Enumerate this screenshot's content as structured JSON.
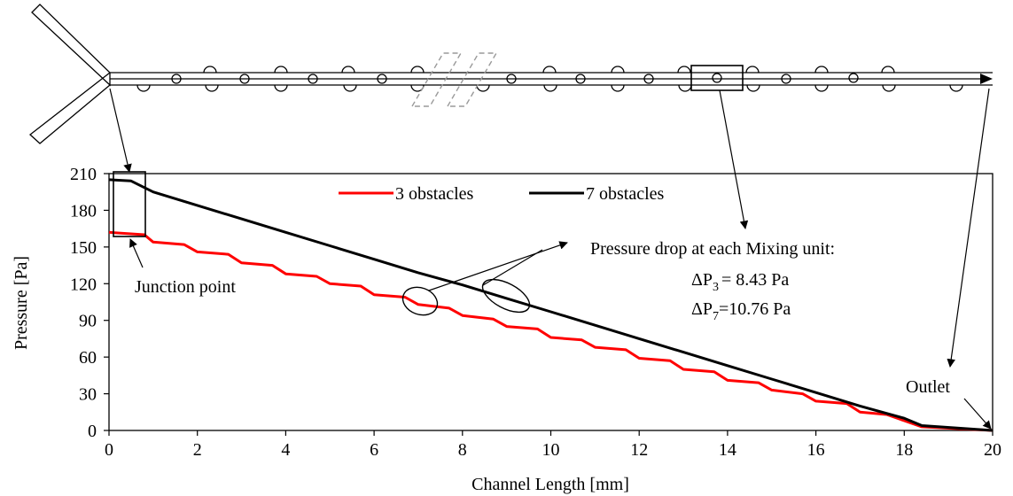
{
  "chart_data": {
    "type": "line",
    "xlabel": "Channel Length [mm]",
    "ylabel": "Pressure [Pa]",
    "xlim": [
      0,
      20
    ],
    "ylim": [
      0,
      210
    ],
    "xticks": [
      0,
      2,
      4,
      6,
      8,
      10,
      12,
      14,
      16,
      18,
      20
    ],
    "yticks": [
      0,
      30,
      60,
      90,
      120,
      150,
      180,
      210
    ],
    "grid": false,
    "legend_position": "top-center",
    "series": [
      {
        "name": "3 obstacles",
        "color": "#ff0000",
        "x": [
          0,
          0.8,
          1.0,
          1.7,
          2.0,
          2.7,
          3.0,
          3.7,
          4.0,
          4.7,
          5.0,
          5.7,
          6.0,
          6.7,
          7.0,
          7.7,
          8.0,
          8.7,
          9.0,
          9.7,
          10.0,
          10.7,
          11.0,
          11.7,
          12.0,
          12.7,
          13.0,
          13.7,
          14.0,
          14.7,
          15.0,
          15.7,
          16.0,
          16.7,
          17.0,
          17.6,
          18.0,
          18.4,
          20.0
        ],
        "y": [
          162,
          160,
          154,
          152,
          146,
          144,
          137,
          135,
          128,
          126,
          120,
          118,
          111,
          109,
          103,
          100,
          94,
          91,
          85,
          83,
          76,
          74,
          68,
          66,
          59,
          57,
          50,
          48,
          41,
          39,
          33,
          30,
          24,
          22,
          15,
          13,
          8,
          3,
          0
        ]
      },
      {
        "name": "7 obstacles",
        "color": "#000000",
        "x": [
          0,
          0.5,
          1,
          2,
          3,
          4,
          5,
          6,
          7,
          8,
          9,
          10,
          11,
          12,
          13,
          14,
          15,
          16,
          17,
          18,
          18.4,
          20
        ],
        "y": [
          205,
          204,
          195,
          184,
          173,
          162,
          151,
          140,
          129,
          119,
          108,
          97,
          86,
          75,
          64,
          53,
          42,
          31,
          20,
          10,
          4,
          0
        ]
      }
    ],
    "annotations": {
      "junction": "Junction point",
      "outlet": "Outlet",
      "pressure_drop_title": "Pressure drop at each Mixing unit:",
      "delta_symbol": "ΔP",
      "dp3_sub": "3",
      "dp3_value": "= 8.43 Pa",
      "dp7_sub": "7",
      "dp7_value": "=10.76 Pa"
    }
  }
}
